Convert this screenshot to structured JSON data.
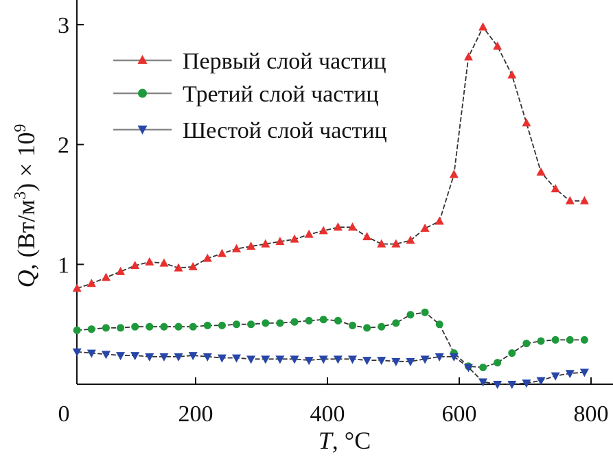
{
  "chart_data": {
    "type": "line",
    "title": "",
    "xlabel": {
      "var": "T",
      "unit": ", °C"
    },
    "ylabel": {
      "var": "Q",
      "unit": ", (Вт/м",
      "unit_sup": "3",
      "mult": ") × 10",
      "mult_sup": "9"
    },
    "xlim": [
      0,
      800
    ],
    "ylim": [
      0,
      3.2
    ],
    "xticks": [
      0,
      200,
      400,
      600,
      800
    ],
    "yticks": [
      1,
      2,
      3
    ],
    "x_tick_labels": [
      "0",
      "200",
      "400",
      "600",
      "800"
    ],
    "y_tick_labels": [
      "1",
      "2",
      "3"
    ],
    "grid": false,
    "legend_position": "top-left",
    "series": [
      {
        "name": "Первый слой частиц",
        "marker": "triangle-up",
        "marker_color": "#e8312f",
        "line_color": "#333333",
        "x": [
          20,
          42,
          64,
          86,
          108,
          130,
          152,
          174,
          196,
          218,
          240,
          262,
          284,
          306,
          328,
          350,
          372,
          394,
          416,
          438,
          460,
          482,
          504,
          526,
          548,
          570,
          592,
          614,
          636,
          658,
          680,
          702,
          724,
          746,
          768,
          790
        ],
        "y": [
          0.8,
          0.84,
          0.89,
          0.94,
          0.99,
          1.02,
          1.01,
          0.97,
          0.98,
          1.05,
          1.09,
          1.13,
          1.15,
          1.17,
          1.19,
          1.21,
          1.25,
          1.28,
          1.31,
          1.31,
          1.23,
          1.17,
          1.17,
          1.2,
          1.3,
          1.36,
          1.75,
          2.73,
          2.98,
          2.82,
          2.58,
          2.18,
          1.77,
          1.63,
          1.53,
          1.53
        ]
      },
      {
        "name": "Третий слой частиц",
        "marker": "circle",
        "marker_color": "#1e9a3c",
        "line_color": "#333333",
        "x": [
          20,
          42,
          64,
          86,
          108,
          130,
          152,
          174,
          196,
          218,
          240,
          262,
          284,
          306,
          328,
          350,
          372,
          394,
          416,
          438,
          460,
          482,
          504,
          526,
          548,
          570,
          592,
          614,
          636,
          658,
          680,
          702,
          724,
          746,
          768,
          790
        ],
        "y": [
          0.45,
          0.46,
          0.47,
          0.47,
          0.48,
          0.48,
          0.48,
          0.48,
          0.48,
          0.49,
          0.49,
          0.5,
          0.5,
          0.51,
          0.51,
          0.52,
          0.53,
          0.54,
          0.53,
          0.49,
          0.47,
          0.48,
          0.51,
          0.58,
          0.6,
          0.5,
          0.26,
          0.15,
          0.14,
          0.18,
          0.26,
          0.34,
          0.36,
          0.37,
          0.37,
          0.37
        ]
      },
      {
        "name": "Шестой слой частиц",
        "marker": "triangle-down",
        "marker_color": "#2846a8",
        "line_color": "#333333",
        "x": [
          20,
          42,
          64,
          86,
          108,
          130,
          152,
          174,
          196,
          218,
          240,
          262,
          284,
          306,
          328,
          350,
          372,
          394,
          416,
          438,
          460,
          482,
          504,
          526,
          548,
          570,
          592,
          614,
          636,
          658,
          680,
          702,
          724,
          746,
          768,
          790
        ],
        "y": [
          0.27,
          0.26,
          0.25,
          0.24,
          0.24,
          0.23,
          0.23,
          0.23,
          0.24,
          0.23,
          0.22,
          0.22,
          0.21,
          0.21,
          0.21,
          0.21,
          0.2,
          0.21,
          0.21,
          0.21,
          0.2,
          0.2,
          0.19,
          0.19,
          0.21,
          0.23,
          0.23,
          0.14,
          0.02,
          0.0,
          0.0,
          0.01,
          0.03,
          0.07,
          0.09,
          0.1
        ]
      }
    ]
  }
}
